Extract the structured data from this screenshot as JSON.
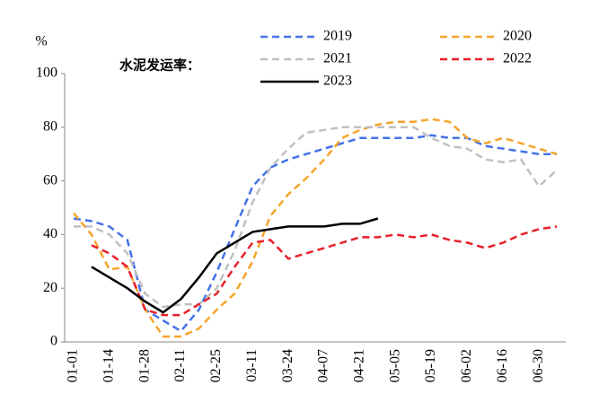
{
  "chart_data": {
    "type": "line",
    "title": "水泥发运率：",
    "y_label": "%",
    "categories": [
      "01-01",
      null,
      "01-14",
      null,
      "01-28",
      null,
      "02-11",
      null,
      "02-25",
      null,
      "03-11",
      null,
      "03-24",
      null,
      "04-07",
      null,
      "04-21",
      null,
      "05-05",
      null,
      "05-19",
      null,
      "06-02",
      null,
      "06-16",
      null,
      "06-30",
      null
    ],
    "series": [
      {
        "name": "2019",
        "color": "#4472e8",
        "style": "dashed",
        "values": [
          46,
          45,
          43,
          38,
          12,
          8,
          4,
          12,
          26,
          42,
          58,
          65,
          68,
          70,
          72,
          74,
          76,
          76,
          76,
          76,
          77,
          76,
          76,
          73,
          72,
          71,
          70,
          70
        ]
      },
      {
        "name": "2020",
        "color": "#f5a42a",
        "style": "dashed",
        "values": [
          48,
          40,
          27,
          28,
          12,
          2,
          2,
          5,
          12,
          18,
          30,
          47,
          55,
          61,
          68,
          76,
          79,
          81,
          82,
          82,
          83,
          82,
          76,
          74,
          76,
          74,
          72,
          70
        ]
      },
      {
        "name": "2021",
        "color": "#c0c0c0",
        "style": "dashed",
        "values": [
          43,
          43,
          40,
          33,
          18,
          13,
          14,
          14,
          20,
          34,
          52,
          65,
          72,
          78,
          79,
          80,
          80,
          80,
          80,
          80,
          76,
          73,
          72,
          68,
          67,
          68,
          58,
          64
        ]
      },
      {
        "name": "2022",
        "color": "#e8202a",
        "style": "dashed",
        "values": [
          null,
          36,
          33,
          28,
          12,
          10,
          10,
          14,
          18,
          28,
          37,
          38,
          31,
          33,
          35,
          37,
          39,
          39,
          40,
          39,
          40,
          38,
          37,
          35,
          37,
          40,
          42,
          43
        ]
      },
      {
        "name": "2023",
        "color": "#000000",
        "style": "solid",
        "values": [
          null,
          28,
          24,
          20,
          15,
          11,
          16,
          24,
          33,
          37,
          41,
          42,
          43,
          43,
          43,
          44,
          44,
          46,
          null,
          null,
          null,
          null,
          null,
          null,
          null,
          null,
          null,
          null
        ]
      }
    ],
    "ylim": [
      0,
      100
    ],
    "yticks": [
      0,
      20,
      40,
      60,
      80,
      100
    ],
    "grid": false
  }
}
